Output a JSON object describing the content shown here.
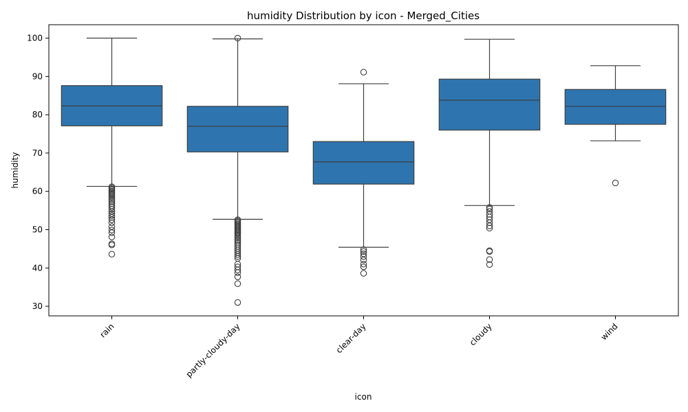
{
  "chart_data": {
    "type": "boxplot",
    "title": "humidity Distribution by icon - Merged_Cities",
    "xlabel": "icon",
    "ylabel": "humidity",
    "ylim": [
      27.5,
      103.5
    ],
    "yticks": [
      30,
      40,
      50,
      60,
      70,
      80,
      90,
      100
    ],
    "grid": false,
    "box_color": "#2e75b0",
    "edge_color": "#3d3d3d",
    "categories": [
      "rain",
      "partly-cloudy-day",
      "clear-day",
      "cloudy",
      "wind"
    ],
    "boxes": [
      {
        "category": "rain",
        "whisker_low": 61.3,
        "q1": 77.1,
        "median": 82.3,
        "q3": 87.6,
        "whisker_high": 100,
        "outliers": [
          61.2,
          60.9,
          60.6,
          60.3,
          60.0,
          59.7,
          59.3,
          58.9,
          58.5,
          58.1,
          57.7,
          57.3,
          56.8,
          56.3,
          55.9,
          55.4,
          54.8,
          54.2,
          53.7,
          53.2,
          52.6,
          51.8,
          50.8,
          49.9,
          49.2,
          48.1,
          46.3,
          46.0,
          43.6
        ]
      },
      {
        "category": "partly-cloudy-day",
        "whisker_low": 52.7,
        "q1": 70.3,
        "median": 77.0,
        "q3": 82.2,
        "whisker_high": 99.8,
        "outliers": [
          100,
          52.6,
          52.3,
          52.0,
          51.7,
          51.4,
          51.1,
          50.8,
          50.5,
          50.2,
          49.9,
          49.6,
          49.3,
          49.0,
          48.6,
          48.2,
          47.8,
          47.4,
          47.0,
          46.5,
          46.0,
          45.5,
          45.0,
          44.5,
          44.0,
          43.5,
          43.0,
          42.5,
          41.0,
          40.3,
          39.5,
          38.8,
          37.7,
          35.9,
          31.0
        ]
      },
      {
        "category": "clear-day",
        "whisker_low": 45.4,
        "q1": 61.9,
        "median": 67.7,
        "q3": 73.0,
        "whisker_high": 88.1,
        "outliers": [
          91.1,
          44.8,
          44.3,
          43.7,
          43.0,
          42.1,
          41.0,
          40.3,
          38.6
        ]
      },
      {
        "category": "cloudy",
        "whisker_low": 56.3,
        "q1": 76.0,
        "median": 83.8,
        "q3": 89.3,
        "whisker_high": 99.7,
        "outliers": [
          55.8,
          55.4,
          54.8,
          54.0,
          53.3,
          52.6,
          51.8,
          51.0,
          50.4,
          44.5,
          44.3,
          42.2,
          40.9
        ]
      },
      {
        "category": "wind",
        "whisker_low": 73.2,
        "q1": 77.5,
        "median": 82.2,
        "q3": 86.6,
        "whisker_high": 92.8,
        "outliers": [
          62.2
        ]
      }
    ]
  }
}
